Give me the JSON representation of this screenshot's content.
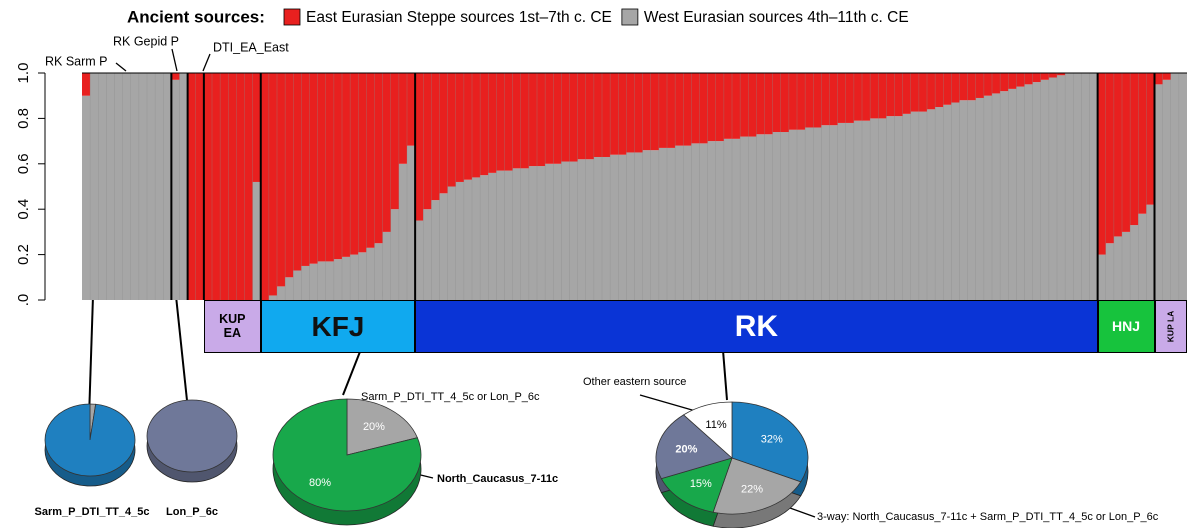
{
  "chart_data": [
    {
      "type": "bar",
      "stacked": true,
      "legend_title": "Ancient sources:",
      "annotations": [
        "RK Sarm P",
        "RK Gepid P",
        "DTI_EA_East"
      ],
      "ylim": [
        0,
        1
      ],
      "yticks": [
        {
          "value": 0,
          "label": ".0"
        },
        0.2,
        0.4,
        0.6,
        0.8,
        {
          "value": 1,
          "label": "1.0"
        }
      ],
      "groups": [
        {
          "label": "KUP EA",
          "color": "#c9aae8"
        },
        {
          "label": "KFJ",
          "color": "#10a9ef"
        },
        {
          "label": "RK",
          "color": "#0a34d6"
        },
        {
          "label": "HNJ",
          "color": "#17c33d"
        },
        {
          "label": "KUP LA",
          "color": "#c9aae8"
        }
      ],
      "series": [
        {
          "name": "East Eurasian Steppe sources 1st–7th c. CE",
          "color": "#e8201f",
          "values": [
            0.1,
            0,
            0,
            0,
            0,
            0,
            0,
            0,
            0,
            0,
            0,
            0.03,
            0,
            1,
            1,
            1,
            1,
            1,
            1,
            1,
            1,
            0.48,
            1,
            0.98,
            0.94,
            0.9,
            0.87,
            0.85,
            0.84,
            0.83,
            0.83,
            0.82,
            0.81,
            0.8,
            0.79,
            0.77,
            0.75,
            0.7,
            0.6,
            0.4,
            0.32,
            0.65,
            0.6,
            0.56,
            0.53,
            0.5,
            0.48,
            0.47,
            0.46,
            0.45,
            0.44,
            0.43,
            0.43,
            0.42,
            0.42,
            0.41,
            0.41,
            0.4,
            0.4,
            0.39,
            0.39,
            0.38,
            0.38,
            0.37,
            0.37,
            0.36,
            0.36,
            0.35,
            0.35,
            0.34,
            0.34,
            0.33,
            0.33,
            0.32,
            0.32,
            0.31,
            0.31,
            0.3,
            0.3,
            0.29,
            0.29,
            0.28,
            0.28,
            0.27,
            0.27,
            0.26,
            0.26,
            0.25,
            0.25,
            0.24,
            0.24,
            0.23,
            0.23,
            0.22,
            0.22,
            0.21,
            0.21,
            0.2,
            0.2,
            0.19,
            0.19,
            0.18,
            0.17,
            0.17,
            0.16,
            0.15,
            0.14,
            0.13,
            0.12,
            0.12,
            0.11,
            0.1,
            0.09,
            0.08,
            0.07,
            0.06,
            0.05,
            0.04,
            0.03,
            0.02,
            0.01,
            0,
            0,
            0,
            0,
            0.8,
            0.75,
            0.72,
            0.7,
            0.67,
            0.62,
            0.58,
            0.05,
            0.03,
            0,
            0
          ]
        },
        {
          "name": "West Eurasian sources 4th–11th c. CE",
          "color": "#a6a6a6",
          "values": [
            0.9,
            1,
            1,
            1,
            1,
            1,
            1,
            1,
            1,
            1,
            1,
            0.97,
            1,
            0,
            0,
            0,
            0,
            0,
            0,
            0,
            0,
            0.52,
            0,
            0.02,
            0.06,
            0.1,
            0.13,
            0.15,
            0.16,
            0.17,
            0.17,
            0.18,
            0.19,
            0.2,
            0.21,
            0.23,
            0.25,
            0.3,
            0.4,
            0.6,
            0.68,
            0.35,
            0.4,
            0.44,
            0.47,
            0.5,
            0.52,
            0.53,
            0.54,
            0.55,
            0.56,
            0.57,
            0.57,
            0.58,
            0.58,
            0.59,
            0.59,
            0.6,
            0.6,
            0.61,
            0.61,
            0.62,
            0.62,
            0.63,
            0.63,
            0.64,
            0.64,
            0.65,
            0.65,
            0.66,
            0.66,
            0.67,
            0.67,
            0.68,
            0.68,
            0.69,
            0.69,
            0.7,
            0.7,
            0.71,
            0.71,
            0.72,
            0.72,
            0.73,
            0.73,
            0.74,
            0.74,
            0.75,
            0.75,
            0.76,
            0.76,
            0.77,
            0.77,
            0.78,
            0.78,
            0.79,
            0.79,
            0.8,
            0.8,
            0.81,
            0.81,
            0.82,
            0.83,
            0.83,
            0.84,
            0.85,
            0.86,
            0.87,
            0.88,
            0.88,
            0.89,
            0.9,
            0.91,
            0.92,
            0.93,
            0.94,
            0.95,
            0.96,
            0.97,
            0.98,
            0.99,
            1,
            1,
            1,
            1,
            0.2,
            0.25,
            0.28,
            0.3,
            0.33,
            0.38,
            0.42,
            0.95,
            0.97,
            1,
            1
          ]
        }
      ]
    },
    {
      "type": "pie",
      "title": "Sarm_P_DTI_TT_4_5c",
      "values": [
        2,
        98
      ],
      "colors": [
        "#a6a6a6",
        "#1f80c0"
      ]
    },
    {
      "type": "pie",
      "title": "Lon_P_6c",
      "values": [
        100
      ],
      "colors": [
        "#6f7899"
      ]
    },
    {
      "type": "pie",
      "values": [
        20,
        80
      ],
      "value_labels": [
        "20%",
        "80%"
      ],
      "colors": [
        "#a6a6a6",
        "#18a84b"
      ],
      "annotations": [
        "Sarm_P_DTI_TT_4_5c or Lon_P_6c",
        "North_Caucasus_7-11c"
      ]
    },
    {
      "type": "pie",
      "values": [
        32,
        22,
        15,
        20,
        11
      ],
      "value_labels": [
        "32%",
        "22%",
        "15%",
        "20%",
        "11%"
      ],
      "colors": [
        "#1f80c0",
        "#a6a6a6",
        "#18a84b",
        "#6f7899",
        "#ffffff"
      ],
      "annotations": [
        "Other eastern source",
        "3-way: North_Caucasus_7-11c + Sarm_P_DTI_TT_4_5c or Lon_P_6c"
      ]
    }
  ]
}
